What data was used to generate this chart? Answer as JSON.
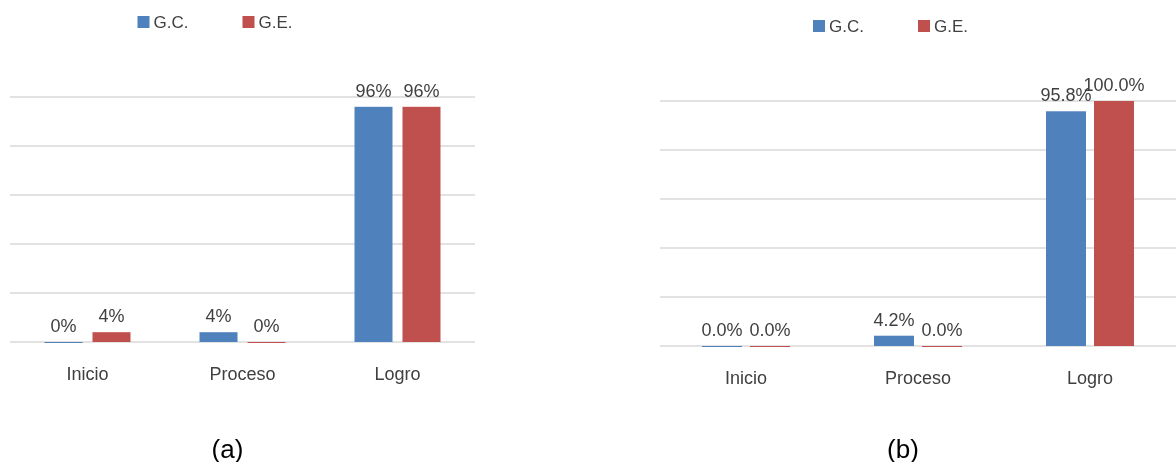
{
  "chart_data": [
    {
      "type": "bar",
      "categories": [
        "Inicio",
        "Proceso",
        "Logro"
      ],
      "series": [
        {
          "name": "G.C.",
          "color": "#4f81bd",
          "values": [
            0,
            4,
            96
          ],
          "value_labels": [
            "0%",
            "4%",
            "96%"
          ]
        },
        {
          "name": "G.E.",
          "color": "#c0504d",
          "values": [
            4,
            0,
            96
          ],
          "value_labels": [
            "4%",
            "0%",
            "96%"
          ]
        }
      ],
      "ylim": [
        0,
        100
      ],
      "yticks": [
        {
          "value": 0,
          "label": null
        },
        {
          "value": 20,
          "label": null
        },
        {
          "value": 40,
          "label": null
        },
        {
          "value": 60,
          "label": null
        },
        {
          "value": 80,
          "label": null
        },
        {
          "value": 100,
          "label": null
        }
      ],
      "tick_labels": "x",
      "grid": "y",
      "legend": "top",
      "annotations": [
        "(a)"
      ]
    },
    {
      "type": "bar",
      "categories": [
        "Inicio",
        "Proceso",
        "Logro"
      ],
      "series": [
        {
          "name": "G.C.",
          "color": "#4f81bd",
          "values": [
            0,
            4.2,
            95.8
          ],
          "value_labels": [
            "0.0%",
            "4.2%",
            "95.8%"
          ]
        },
        {
          "name": "G.E.",
          "color": "#c0504d",
          "values": [
            0,
            0,
            100
          ],
          "value_labels": [
            "0.0%",
            "0.0%",
            "100.0%"
          ]
        }
      ],
      "ylim": [
        0,
        100
      ],
      "yticks": [
        {
          "value": 0,
          "label": null
        },
        {
          "value": 20,
          "label": null
        },
        {
          "value": 40,
          "label": null
        },
        {
          "value": 60,
          "label": null
        },
        {
          "value": 80,
          "label": null
        },
        {
          "value": 100,
          "label": null
        }
      ],
      "tick_labels": "x",
      "grid": "y",
      "legend": "top",
      "annotations": [
        "(b)"
      ]
    }
  ]
}
